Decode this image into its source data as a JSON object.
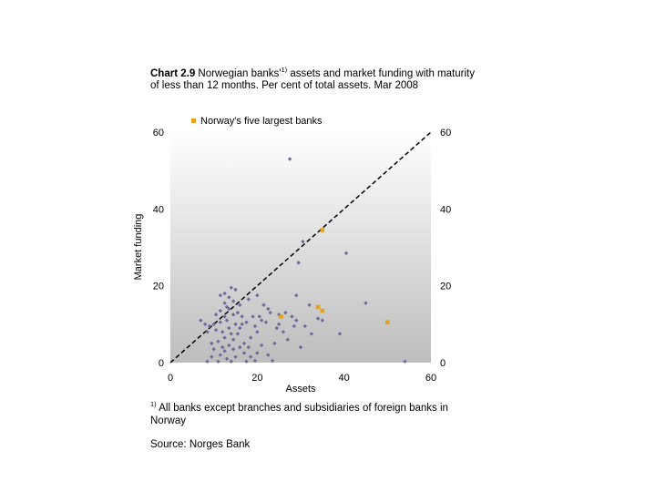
{
  "title": {
    "prefix": "Chart 2.9",
    "text_a": " Norwegian banks'",
    "sup": "1)",
    "text_b": " assets and market funding with maturity of less than 12 months. Per cent of total assets. Mar 2008"
  },
  "footnote": {
    "marker": "1)",
    "text": " All banks except branches and subsidiaries of foreign banks in Norway"
  },
  "source": "Source: Norges Bank",
  "colors": {
    "small_banks": "#6b6b9c",
    "large_banks": "#e8a020",
    "plot_bg_top": "#ffffff",
    "plot_bg_bottom": "#bdbdbd",
    "diagonal": "#000000"
  },
  "chart_data": {
    "type": "scatter",
    "xlabel": "Assets",
    "ylabel": "Market funding",
    "xlim": [
      0,
      60
    ],
    "ylim": [
      0,
      60
    ],
    "x_ticks": [
      "0",
      "20",
      "40",
      "60"
    ],
    "y_ticks_left": [
      "0",
      "20",
      "40",
      "60"
    ],
    "y_ticks_right": [
      "0",
      "20",
      "40",
      "60"
    ],
    "legend": [
      {
        "name": "Norway's five largest banks",
        "placement": "top"
      }
    ],
    "reference_line": {
      "type": "diagonal",
      "from": [
        0,
        0
      ],
      "to": [
        60,
        60
      ],
      "style": "dashed"
    },
    "series": [
      {
        "name": "",
        "marker": "diamond",
        "points": [
          [
            27.5,
            53
          ],
          [
            30.5,
            31.5
          ],
          [
            40.5,
            28.5
          ],
          [
            29.5,
            26
          ],
          [
            45,
            15.5
          ],
          [
            29,
            17.5
          ],
          [
            32,
            15
          ],
          [
            34,
            11.5
          ],
          [
            39,
            7.5
          ],
          [
            32.5,
            7.5
          ],
          [
            31,
            9.5
          ],
          [
            28,
            12
          ],
          [
            29,
            11
          ],
          [
            25,
            10
          ],
          [
            26,
            8
          ],
          [
            27,
            6
          ],
          [
            24,
            5
          ],
          [
            30,
            4
          ],
          [
            25,
            12.5
          ],
          [
            26.5,
            13
          ],
          [
            22.5,
            14
          ],
          [
            21.5,
            15
          ],
          [
            20.5,
            12
          ],
          [
            22,
            10.5
          ],
          [
            19.5,
            9.5
          ],
          [
            20,
            8
          ],
          [
            18.5,
            6.5
          ],
          [
            17,
            5
          ],
          [
            18,
            4
          ],
          [
            16.5,
            12
          ],
          [
            17.5,
            10.5
          ],
          [
            16,
            9
          ],
          [
            15.5,
            7.5
          ],
          [
            14.5,
            6
          ],
          [
            13.5,
            4.5
          ],
          [
            12.5,
            3
          ],
          [
            11.5,
            2
          ],
          [
            13,
            1
          ],
          [
            15,
            1.5
          ],
          [
            17,
            2.5
          ],
          [
            14,
            19.5
          ],
          [
            15,
            19
          ],
          [
            12.5,
            18
          ],
          [
            13.5,
            17
          ],
          [
            11.5,
            17.5
          ],
          [
            14.5,
            16
          ],
          [
            12.5,
            15.5
          ],
          [
            16,
            15
          ],
          [
            13.5,
            14
          ],
          [
            11.5,
            13.5
          ],
          [
            10.5,
            12.5
          ],
          [
            12.5,
            12
          ],
          [
            14.5,
            12.5
          ],
          [
            15.5,
            13
          ],
          [
            13,
            11
          ],
          [
            11.5,
            10.5
          ],
          [
            10,
            10
          ],
          [
            9,
            9.5
          ],
          [
            8.5,
            8
          ],
          [
            10.5,
            8.5
          ],
          [
            12,
            8
          ],
          [
            13.5,
            9
          ],
          [
            15,
            10
          ],
          [
            16.5,
            10
          ],
          [
            14,
            7.5
          ],
          [
            12.5,
            6.5
          ],
          [
            11,
            5.5
          ],
          [
            9.5,
            5
          ],
          [
            10,
            3.5
          ],
          [
            12,
            4
          ],
          [
            14.5,
            3.5
          ],
          [
            16,
            4
          ],
          [
            18.5,
            1.5
          ],
          [
            20,
            2.5
          ],
          [
            21,
            4.5
          ],
          [
            22.5,
            2
          ],
          [
            23.5,
            0.5
          ],
          [
            19.5,
            0.5
          ],
          [
            17.5,
            0.3
          ],
          [
            14,
            0.3
          ],
          [
            11,
            0.3
          ],
          [
            8.5,
            0.3
          ],
          [
            9.5,
            1.5
          ],
          [
            7,
            11
          ],
          [
            8,
            10
          ],
          [
            20,
            17.5
          ],
          [
            18,
            16.5
          ],
          [
            19,
            12
          ],
          [
            21,
            11
          ],
          [
            23,
            13
          ],
          [
            24.5,
            9
          ],
          [
            28.5,
            9.5
          ],
          [
            35,
            11
          ],
          [
            54,
            0.3
          ],
          [
            13,
            14.5
          ]
        ]
      },
      {
        "name": "Norway's five largest banks",
        "marker": "square",
        "points": [
          [
            35,
            34.5
          ],
          [
            34,
            14.5
          ],
          [
            35,
            13.5
          ],
          [
            25.5,
            12
          ],
          [
            50,
            10.5
          ]
        ]
      }
    ]
  }
}
